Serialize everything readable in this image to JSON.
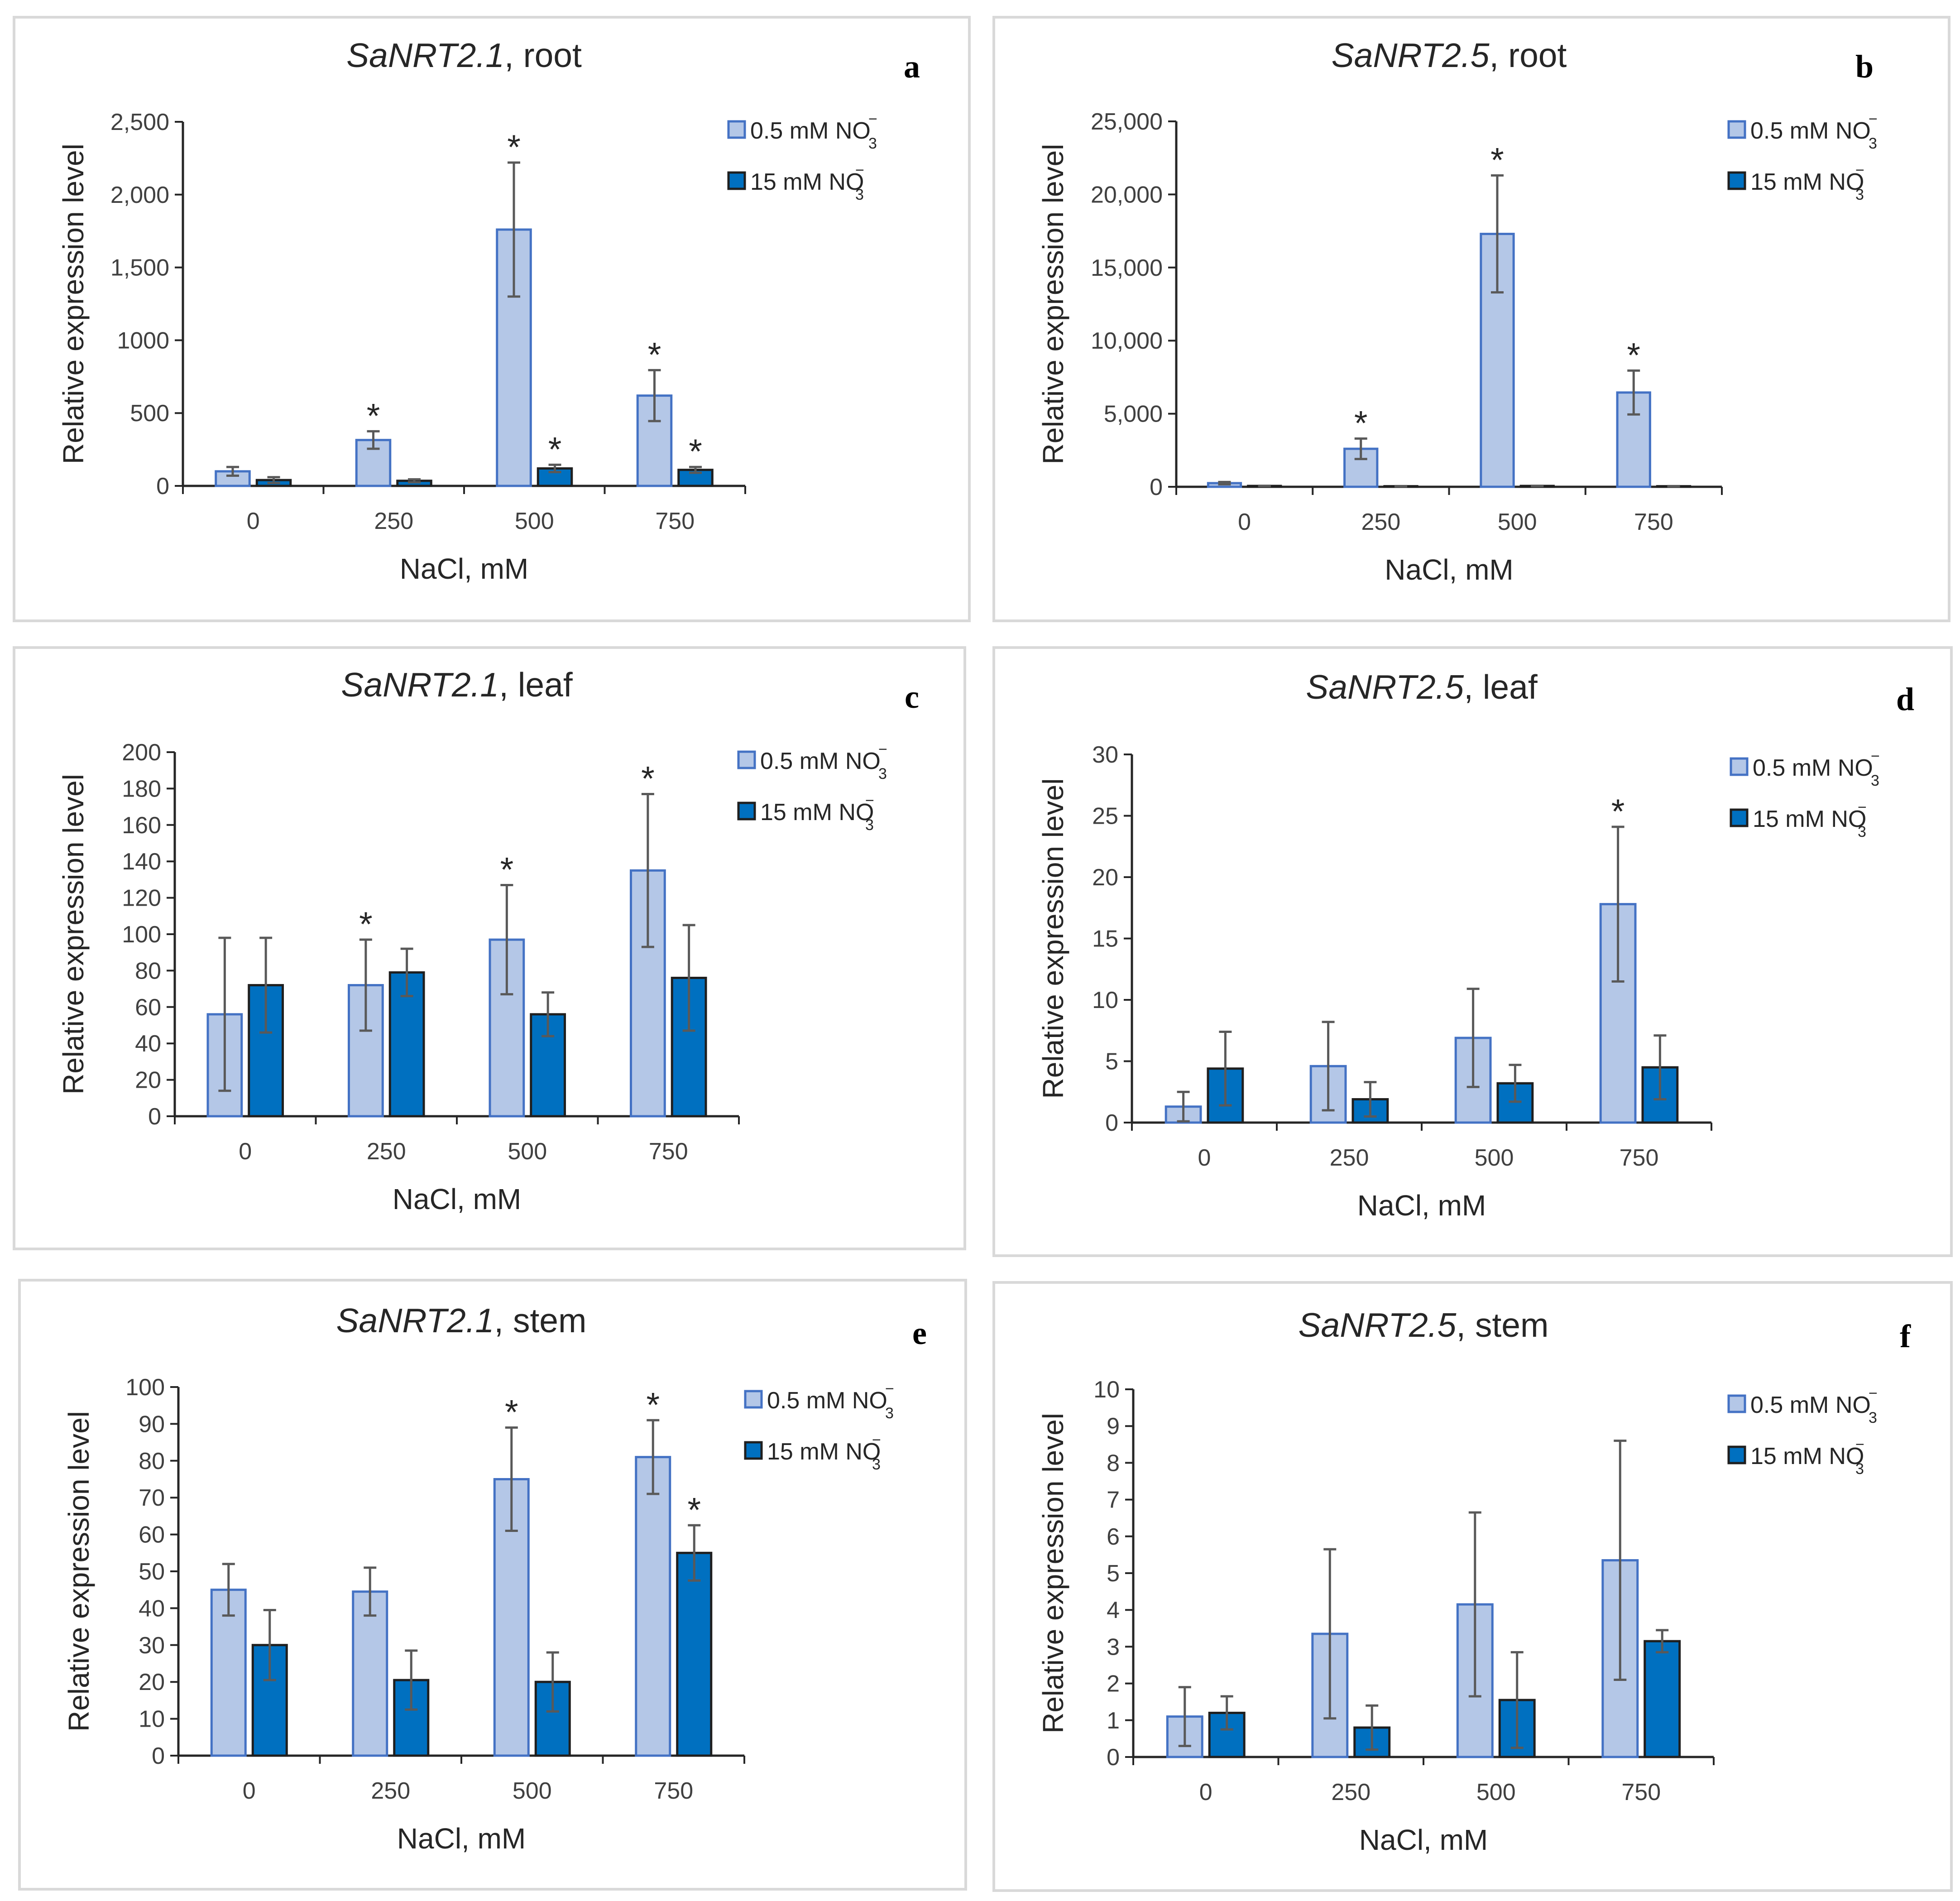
{
  "colors": {
    "series_light_fill": "#b4c7e7",
    "series_light_stroke": "#4472c4",
    "series_dark_fill": "#0070c0",
    "series_dark_stroke": "#1f1f1f",
    "axis": "#262626",
    "error_bar": "#595959",
    "panel_border": "#d9d9d9"
  },
  "chart_data": [
    {
      "id": "a",
      "panel_label": "a",
      "type": "bar",
      "title_gene": "SaNRT2.1",
      "title_tissue": ", root",
      "xlabel": "NaCl, mM",
      "ylabel": "Relative expression level",
      "categories": [
        "0",
        "250",
        "500",
        "750"
      ],
      "ylim": [
        0,
        2500
      ],
      "yticks": [
        0,
        500,
        1000,
        1500,
        2000,
        2500
      ],
      "ytick_labels": [
        "0",
        "500",
        "1000",
        "1,500",
        "2,000",
        "2,500"
      ],
      "series": [
        {
          "name": "0.5 mM NO",
          "sub": "3",
          "sup": "−",
          "values": [
            100,
            315,
            1760,
            620
          ],
          "errors": [
            30,
            60,
            460,
            175
          ],
          "significant": [
            false,
            true,
            true,
            true
          ]
        },
        {
          "name": "15 mM NO",
          "sub": "3",
          "sup": "−",
          "values": [
            40,
            35,
            120,
            110
          ],
          "errors": [
            20,
            10,
            25,
            20
          ],
          "significant": [
            false,
            false,
            true,
            true
          ]
        }
      ],
      "significance_marker": "*"
    },
    {
      "id": "b",
      "panel_label": "b",
      "type": "bar",
      "title_gene": "SaNRT2.5",
      "title_tissue": ", root",
      "xlabel": "NaCl, mM",
      "ylabel": "Relative expression level",
      "categories": [
        "0",
        "250",
        "500",
        "750"
      ],
      "ylim": [
        0,
        25000
      ],
      "yticks": [
        0,
        5000,
        10000,
        15000,
        20000,
        25000
      ],
      "ytick_labels": [
        "0",
        "5,000",
        "10,000",
        "15,000",
        "20,000",
        "25,000"
      ],
      "series": [
        {
          "name": "0.5 mM NO",
          "sub": "3",
          "sup": "−",
          "values": [
            250,
            2600,
            17300,
            6450
          ],
          "errors": [
            80,
            700,
            4000,
            1500
          ],
          "significant": [
            false,
            true,
            true,
            true
          ]
        },
        {
          "name": "15 mM NO",
          "sub": "3",
          "sup": "−",
          "values": [
            60,
            40,
            60,
            40
          ],
          "errors": [
            10,
            10,
            10,
            10
          ],
          "significant": [
            false,
            false,
            false,
            false
          ]
        }
      ],
      "significance_marker": "*"
    },
    {
      "id": "c",
      "panel_label": "c",
      "type": "bar",
      "title_gene": "SaNRT2.1",
      "title_tissue": ", leaf",
      "xlabel": "NaCl, mM",
      "ylabel": "Relative expression level",
      "categories": [
        "0",
        "250",
        "500",
        "750"
      ],
      "ylim": [
        0,
        200
      ],
      "yticks": [
        0,
        20,
        40,
        60,
        80,
        100,
        120,
        140,
        160,
        180,
        200
      ],
      "ytick_labels": [
        "0",
        "20",
        "40",
        "60",
        "80",
        "100",
        "120",
        "140",
        "160",
        "180",
        "200"
      ],
      "series": [
        {
          "name": "0.5 mM NO",
          "sub": "3",
          "sup": "−",
          "values": [
            56,
            72,
            97,
            135
          ],
          "errors": [
            42,
            25,
            30,
            42
          ],
          "significant": [
            false,
            true,
            true,
            true
          ]
        },
        {
          "name": "15 mM NO",
          "sub": "3",
          "sup": "−",
          "values": [
            72,
            79,
            56,
            76
          ],
          "errors": [
            26,
            13,
            12,
            29
          ],
          "significant": [
            false,
            false,
            false,
            false
          ]
        }
      ],
      "significance_marker": "*"
    },
    {
      "id": "d",
      "panel_label": "d",
      "type": "bar",
      "title_gene": "SaNRT2.5",
      "title_tissue": ", leaf",
      "xlabel": "NaCl, mM",
      "ylabel": "Relative expression level",
      "categories": [
        "0",
        "250",
        "500",
        "750"
      ],
      "ylim": [
        0,
        30
      ],
      "yticks": [
        0,
        5,
        10,
        15,
        20,
        25,
        30
      ],
      "ytick_labels": [
        "0",
        "5",
        "10",
        "15",
        "20",
        "25",
        "30"
      ],
      "series": [
        {
          "name": "0.5 mM NO",
          "sub": "3",
          "sup": "−",
          "values": [
            1.3,
            4.6,
            6.9,
            17.8
          ],
          "errors": [
            1.2,
            3.6,
            4.0,
            6.3
          ],
          "significant": [
            false,
            false,
            false,
            true
          ]
        },
        {
          "name": "15 mM NO",
          "sub": "3",
          "sup": "−",
          "values": [
            4.4,
            1.9,
            3.2,
            4.5
          ],
          "errors": [
            3.0,
            1.4,
            1.5,
            2.6
          ],
          "significant": [
            false,
            false,
            false,
            false
          ]
        }
      ],
      "significance_marker": "*"
    },
    {
      "id": "e",
      "panel_label": "e",
      "type": "bar",
      "title_gene": "SaNRT2.1",
      "title_tissue": ", stem",
      "xlabel": "NaCl, mM",
      "ylabel": "Relative expression level",
      "categories": [
        "0",
        "250",
        "500",
        "750"
      ],
      "ylim": [
        0,
        100
      ],
      "yticks": [
        0,
        10,
        20,
        30,
        40,
        50,
        60,
        70,
        80,
        90,
        100
      ],
      "ytick_labels": [
        "0",
        "10",
        "20",
        "30",
        "40",
        "50",
        "60",
        "70",
        "80",
        "90",
        "100"
      ],
      "series": [
        {
          "name": "0.5 mM NO",
          "sub": "3",
          "sup": "−",
          "values": [
            45,
            44.5,
            75,
            81
          ],
          "errors": [
            7,
            6.5,
            14,
            10
          ],
          "significant": [
            false,
            false,
            true,
            true
          ]
        },
        {
          "name": "15 mM NO",
          "sub": "3",
          "sup": "−",
          "values": [
            30,
            20.5,
            20,
            55
          ],
          "errors": [
            9.5,
            8,
            8,
            7.5
          ],
          "significant": [
            false,
            false,
            false,
            true
          ]
        }
      ],
      "significance_marker": "*"
    },
    {
      "id": "f",
      "panel_label": "f",
      "type": "bar",
      "title_gene": "SaNRT2.5",
      "title_tissue": ", stem",
      "xlabel": "NaCl, mM",
      "ylabel": "Relative expression level",
      "categories": [
        "0",
        "250",
        "500",
        "750"
      ],
      "ylim": [
        0,
        10
      ],
      "yticks": [
        0,
        1,
        2,
        3,
        4,
        5,
        6,
        7,
        8,
        9,
        10
      ],
      "ytick_labels": [
        "0",
        "1",
        "2",
        "3",
        "4",
        "5",
        "6",
        "7",
        "8",
        "9",
        "10"
      ],
      "series": [
        {
          "name": "0.5 mM NO",
          "sub": "3",
          "sup": "−",
          "values": [
            1.1,
            3.35,
            4.15,
            5.35
          ],
          "errors": [
            0.8,
            2.3,
            2.5,
            3.25
          ],
          "significant": [
            false,
            false,
            false,
            false
          ]
        },
        {
          "name": "15 mM NO",
          "sub": "3",
          "sup": "−",
          "values": [
            1.2,
            0.8,
            1.55,
            3.15
          ],
          "errors": [
            0.45,
            0.6,
            1.3,
            0.3
          ],
          "significant": [
            false,
            false,
            false,
            false
          ]
        }
      ],
      "significance_marker": "*"
    }
  ]
}
